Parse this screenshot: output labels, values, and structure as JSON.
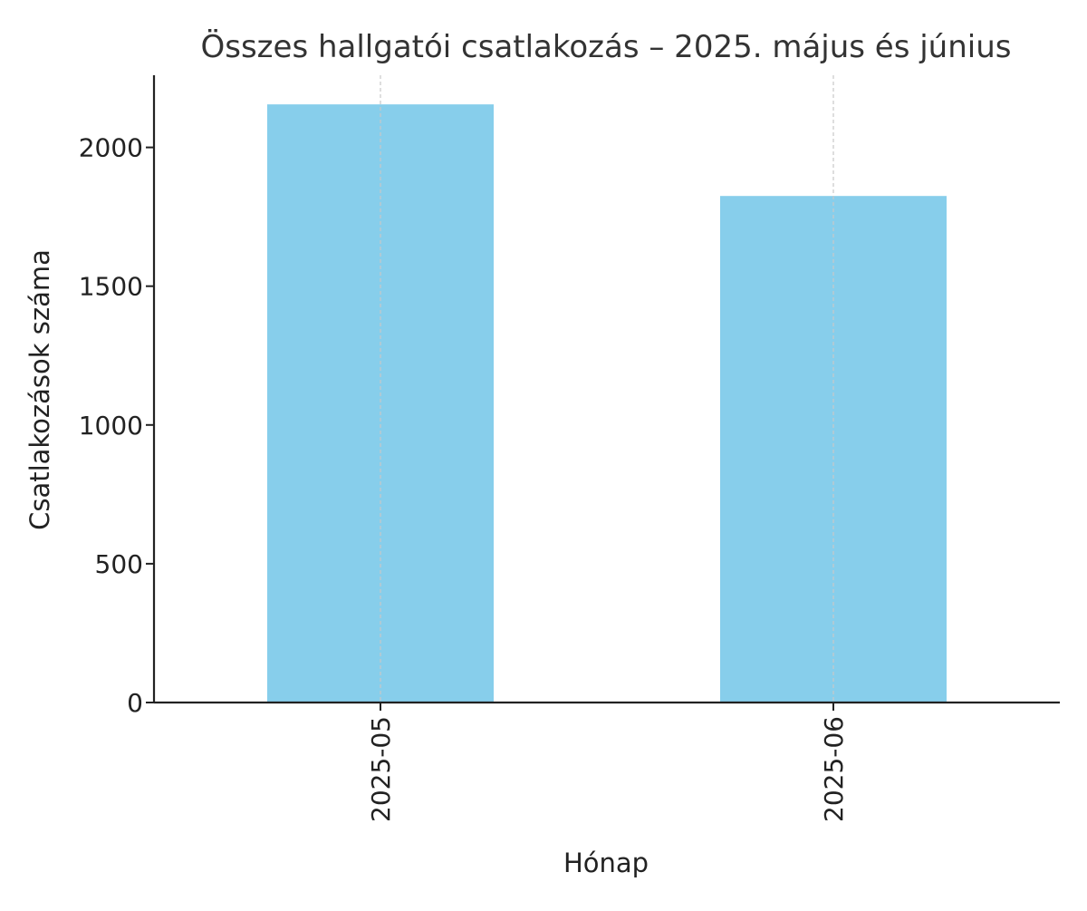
{
  "chart_data": {
    "type": "bar",
    "title": "Összes hallgatói csatlakozás – 2025. május és június",
    "xlabel": "Hónap",
    "ylabel": "Csatlakozások száma",
    "categories": [
      "2025-05",
      "2025-06"
    ],
    "values": [
      2155,
      1825
    ],
    "ylim": [
      0,
      2260
    ],
    "yticks": [
      0,
      500,
      1000,
      1500,
      2000
    ],
    "x_grid": true,
    "y_grid": false,
    "bar_color": "#87CEEB",
    "axis_color": "#222222",
    "grid_color": "#c8c8c8"
  }
}
